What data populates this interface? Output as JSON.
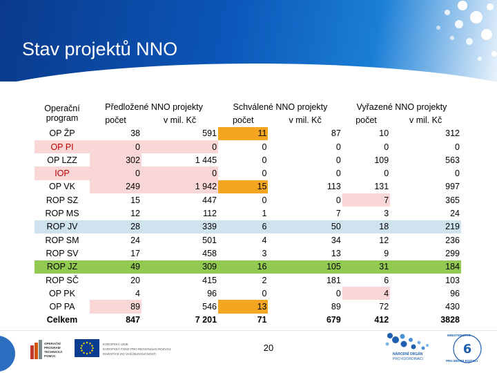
{
  "slide": {
    "title": "Stav projektů NNO",
    "page_number": "20"
  },
  "table": {
    "program_header": [
      "Operační",
      "program"
    ],
    "group_headers": [
      "Předložené NNO projekty",
      "Schválené NNO projekty",
      "Vyřazené NNO projekty"
    ],
    "sub_headers": [
      "počet",
      "v mil. Kč",
      "počet",
      "v mil. Kč",
      "počet",
      "v mil. Kč"
    ],
    "rows": [
      {
        "program": "OP ŽP",
        "values": [
          "38",
          "591",
          "11",
          "87",
          "10",
          "312"
        ]
      },
      {
        "program": "OP PI",
        "values": [
          "0",
          "0",
          "0",
          "0",
          "0",
          "0"
        ]
      },
      {
        "program": "OP LZZ",
        "values": [
          "302",
          "1 445",
          "0",
          "0",
          "109",
          "563"
        ]
      },
      {
        "program": "IOP",
        "values": [
          "0",
          "0",
          "0",
          "0",
          "0",
          "0"
        ]
      },
      {
        "program": "OP VK",
        "values": [
          "249",
          "1 942",
          "15",
          "113",
          "131",
          "997"
        ]
      },
      {
        "program": "ROP SZ",
        "values": [
          "15",
          "447",
          "0",
          "0",
          "7",
          "365"
        ]
      },
      {
        "program": "ROP MS",
        "values": [
          "12",
          "112",
          "1",
          "7",
          "3",
          "24"
        ]
      },
      {
        "program": "ROP JV",
        "values": [
          "28",
          "339",
          "6",
          "50",
          "18",
          "219"
        ]
      },
      {
        "program": "ROP SM",
        "values": [
          "24",
          "501",
          "4",
          "34",
          "12",
          "236"
        ]
      },
      {
        "program": "ROP SV",
        "values": [
          "17",
          "458",
          "3",
          "13",
          "9",
          "299"
        ]
      },
      {
        "program": "ROP JZ",
        "values": [
          "49",
          "309",
          "16",
          "105",
          "31",
          "184"
        ]
      },
      {
        "program": "ROP SČ",
        "values": [
          "20",
          "415",
          "2",
          "181",
          "6",
          "103"
        ]
      },
      {
        "program": "OP PK",
        "values": [
          "4",
          "96",
          "0",
          "0",
          "4",
          "96"
        ]
      },
      {
        "program": "OP PA",
        "values": [
          "89",
          "546",
          "13",
          "89",
          "72",
          "430"
        ]
      },
      {
        "program": "Celkem",
        "values": [
          "847",
          "7 201",
          "71",
          "679",
          "412",
          "3828"
        ]
      }
    ]
  },
  "logos": {
    "op_text": [
      "OPERAČNÍ",
      "PROGRAM",
      "TECHNICKÁ",
      "POMOC"
    ],
    "eu_text": [
      "EVROPSKÁ UNIE",
      "EVROPSKÝ FOND PRO REGIONÁLNÍ ROZVOJ",
      "INVESTICE DO VAŠÍ BUDOUCNOSTI"
    ],
    "no_text": [
      "NÁRODNÍ ORGÁN",
      "PRO KOORDINACI"
    ],
    "mmr_text": [
      "MINISTERSTVO",
      "PRO MÍSTNÍ ROZVOJ"
    ]
  },
  "colors": {
    "header_blue": "#0b56b8",
    "highlight_pink": "#f9d7d7",
    "highlight_blue": "#cfe3ee",
    "highlight_green": "#92c950",
    "highlight_orange": "#f4a623",
    "program_red_text": "#c00000"
  }
}
